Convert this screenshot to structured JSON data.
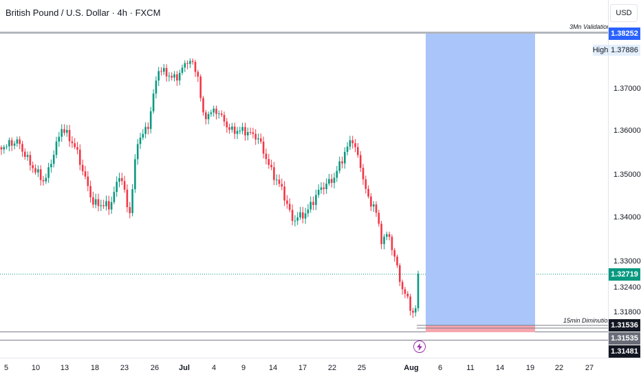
{
  "header": {
    "title": "British Pound / U.S. Dollar · 4h · FXCM"
  },
  "price_scale": {
    "currency": "USD",
    "labels": [
      "1.37000",
      "1.36000",
      "1.35000",
      "1.34000",
      "1.33000",
      "1.32400",
      "1.31800"
    ],
    "tags": {
      "validation": {
        "value": "1.38252",
        "color": "#2962ff"
      },
      "high": {
        "label": "High",
        "value": "1.37886"
      },
      "current": {
        "value": "1.32719",
        "color": "#089981"
      },
      "diminution": {
        "value": "1.31536",
        "color": "#131722"
      },
      "lower": {
        "value": "1.31535",
        "color": "#6a6d78"
      },
      "bottom": {
        "value": "1.31481",
        "color": "#131722"
      }
    }
  },
  "time_axis": {
    "labels": [
      "5",
      "10",
      "13",
      "18",
      "23",
      "26",
      "Jul",
      "4",
      "9",
      "14",
      "17",
      "22",
      "25",
      "Aug",
      "6",
      "11",
      "14",
      "19",
      "22",
      "27"
    ]
  },
  "annotations": {
    "validation": "3Mn Validation",
    "diminution": "15min Diminution"
  },
  "colors": {
    "up": "#089981",
    "down": "#f23645",
    "target_zone": "#a9c5fa",
    "stop_zone": "#f7a6ad"
  },
  "icons": {
    "event": "lightning-icon"
  }
}
